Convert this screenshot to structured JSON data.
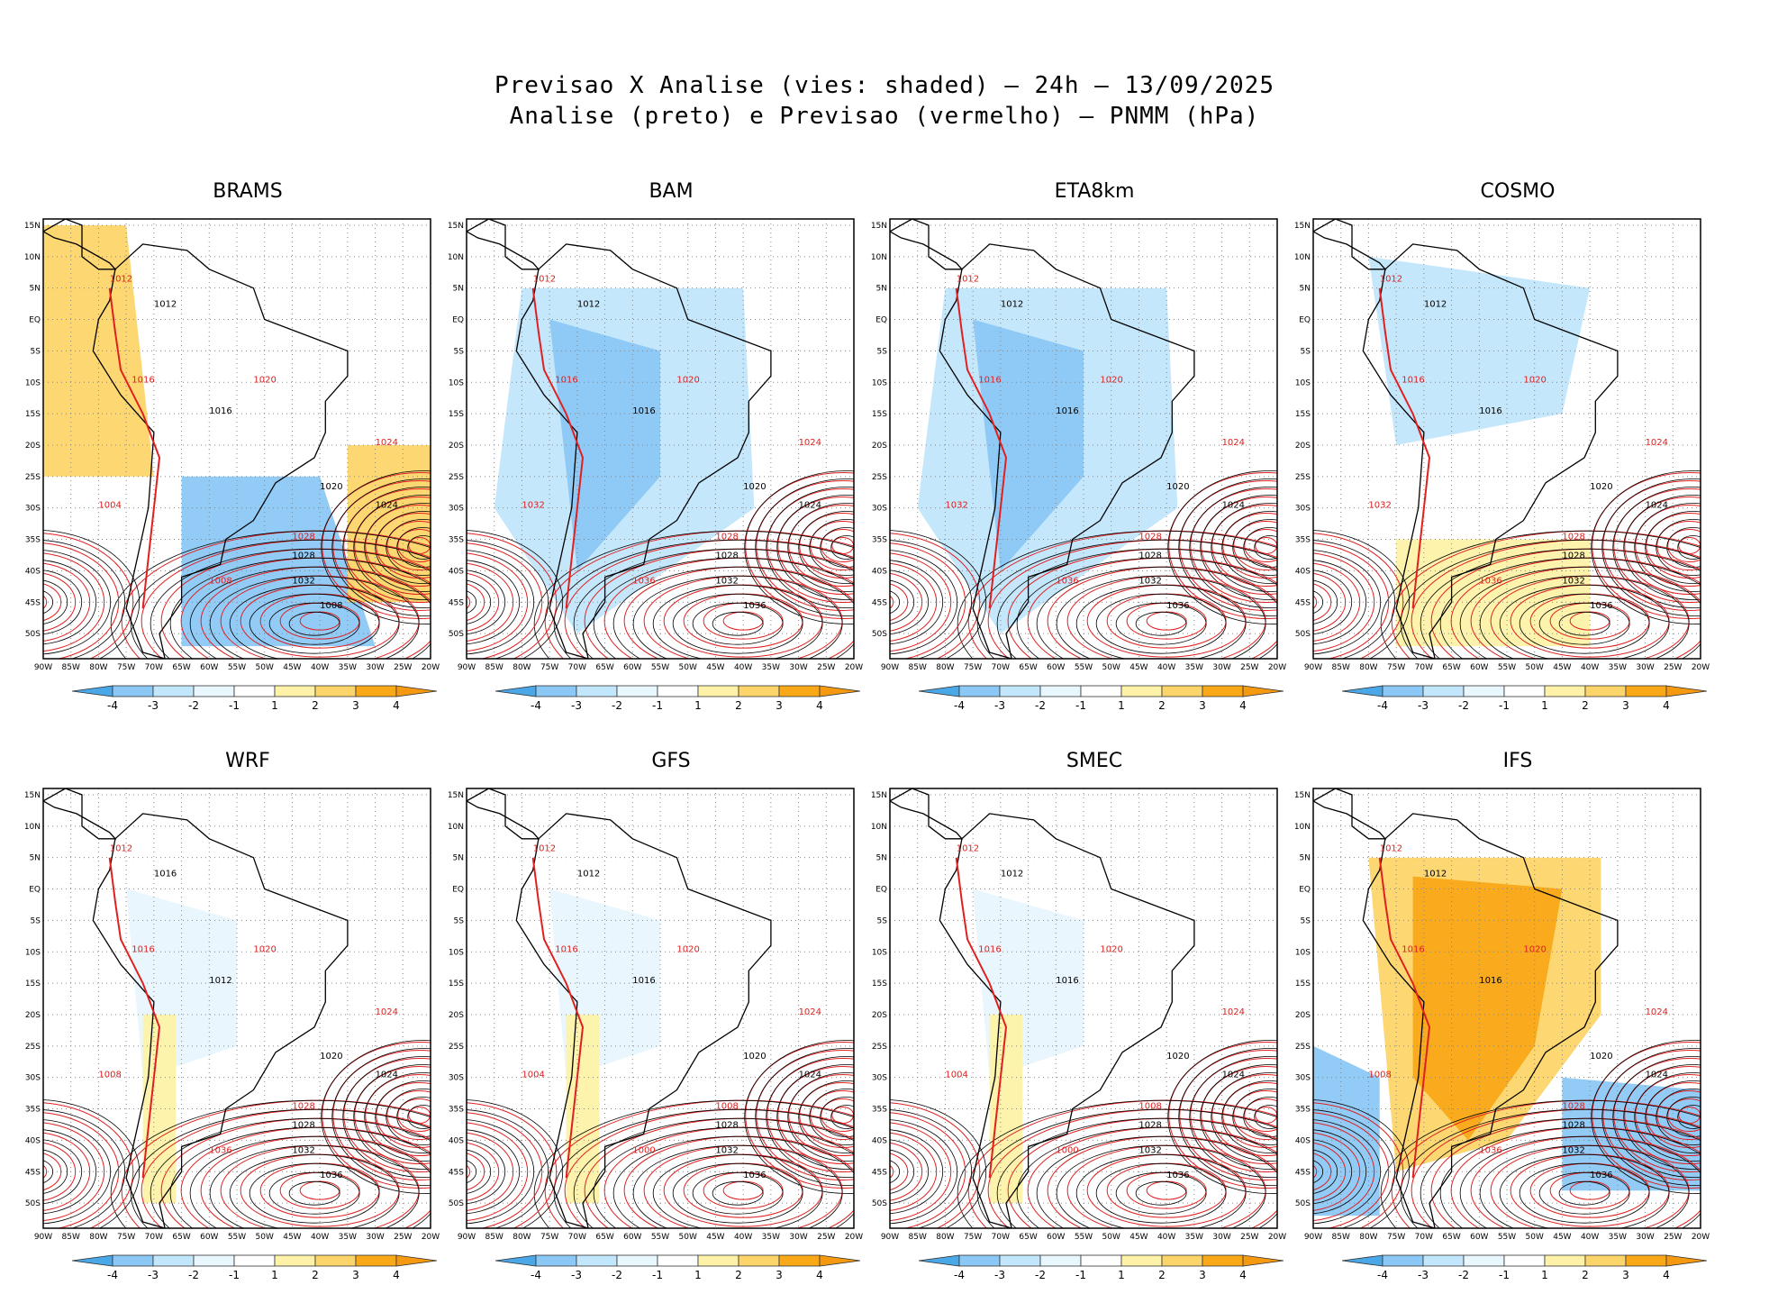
{
  "header": {
    "line1": "Previsao X Analise (vies: shaded) – 24h – 13/09/2025",
    "line2": "Analise (preto) e Previsao (vermelho) – PNMM (hPa)"
  },
  "axes": {
    "lat_labels": [
      "15N",
      "10N",
      "5N",
      "EQ",
      "5S",
      "10S",
      "15S",
      "20S",
      "25S",
      "30S",
      "35S",
      "40S",
      "45S",
      "50S"
    ],
    "lon_labels": [
      "90W",
      "85W",
      "80W",
      "75W",
      "70W",
      "65W",
      "60W",
      "55W",
      "50W",
      "45W",
      "40W",
      "35W",
      "30W",
      "25W",
      "20W"
    ]
  },
  "colorbar": {
    "labels": [
      "-4",
      "-3",
      "-2",
      "-1",
      "1",
      "2",
      "3",
      "4"
    ],
    "colors": [
      "#4aa8e8",
      "#8cc8f5",
      "#c2e6fb",
      "#e8f6fd",
      "#ffffff",
      "#fdf2a8",
      "#fcd56a",
      "#f9a818",
      "#f59a10"
    ]
  },
  "colors": {
    "analysis": "#000000",
    "forecast": "#e02020"
  },
  "panels": [
    {
      "name": "BRAMS",
      "bias": "mixed",
      "labels": {
        "analysis": [
          "1012",
          "1016",
          "1020",
          "1024",
          "1028",
          "1032",
          "1008"
        ],
        "forecast": [
          "1012",
          "1016",
          "1020",
          "1024",
          "1028",
          "1004",
          "1008"
        ]
      }
    },
    {
      "name": "BAM",
      "bias": "cool",
      "labels": {
        "analysis": [
          "1012",
          "1016",
          "1020",
          "1024",
          "1028",
          "1032",
          "1036"
        ],
        "forecast": [
          "1012",
          "1016",
          "1020",
          "1024",
          "1028",
          "1032",
          "1036"
        ]
      }
    },
    {
      "name": "ETA8km",
      "bias": "cool",
      "labels": {
        "analysis": [
          "1012",
          "1016",
          "1020",
          "1024",
          "1028",
          "1032",
          "1036"
        ],
        "forecast": [
          "1012",
          "1016",
          "1020",
          "1024",
          "1028",
          "1032",
          "1036"
        ]
      }
    },
    {
      "name": "COSMO",
      "bias": "warm-south",
      "labels": {
        "analysis": [
          "1012",
          "1016",
          "1020",
          "1024",
          "1028",
          "1032",
          "1036"
        ],
        "forecast": [
          "1012",
          "1016",
          "1020",
          "1024",
          "1028",
          "1032",
          "1036"
        ]
      }
    },
    {
      "name": "WRF",
      "bias": "neutral",
      "labels": {
        "analysis": [
          "1016",
          "1012",
          "1020",
          "1024",
          "1028",
          "1032",
          "1036"
        ],
        "forecast": [
          "1012",
          "1016",
          "1020",
          "1024",
          "1028",
          "1008",
          "1036"
        ]
      }
    },
    {
      "name": "GFS",
      "bias": "neutral",
      "labels": {
        "analysis": [
          "1012",
          "1016",
          "1020",
          "1024",
          "1028",
          "1032",
          "1036"
        ],
        "forecast": [
          "1012",
          "1016",
          "1020",
          "1024",
          "1008",
          "1004",
          "1000"
        ]
      }
    },
    {
      "name": "SMEC",
      "bias": "neutral",
      "labels": {
        "analysis": [
          "1012",
          "1016",
          "1020",
          "1024",
          "1028",
          "1032",
          "1036"
        ],
        "forecast": [
          "1012",
          "1016",
          "1020",
          "1024",
          "1008",
          "1004",
          "1000"
        ]
      }
    },
    {
      "name": "IFS",
      "bias": "warm",
      "labels": {
        "analysis": [
          "1012",
          "1016",
          "1020",
          "1024",
          "1028",
          "1032",
          "1036"
        ],
        "forecast": [
          "1012",
          "1016",
          "1020",
          "1024",
          "1028",
          "1008",
          "1036"
        ]
      }
    }
  ]
}
